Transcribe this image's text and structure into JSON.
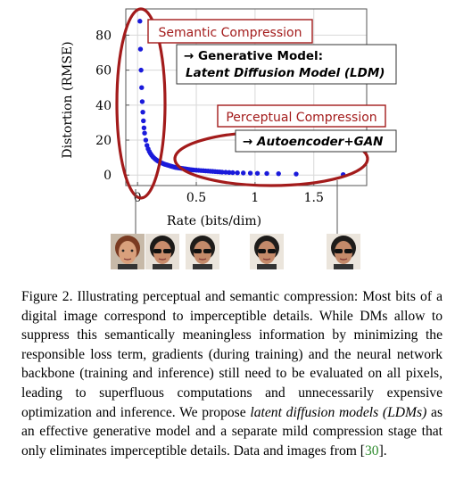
{
  "chart_data": {
    "type": "scatter",
    "title": "",
    "xlabel": "Rate (bits/dim)",
    "ylabel": "Distortion (RMSE)",
    "xlim": [
      -0.1,
      1.95
    ],
    "ylim": [
      -6,
      95
    ],
    "x_ticks": [
      0,
      0.5,
      1,
      1.5
    ],
    "x_tick_labels": [
      "0",
      "0.5",
      "1",
      "1.5"
    ],
    "y_ticks": [
      0,
      20,
      40,
      60,
      80
    ],
    "y_tick_labels": [
      "0",
      "20",
      "40",
      "60",
      "80"
    ],
    "grid": true,
    "color": "#1a1adb",
    "x": [
      0.02,
      0.025,
      0.03,
      0.035,
      0.04,
      0.045,
      0.05,
      0.055,
      0.06,
      0.07,
      0.08,
      0.09,
      0.1,
      0.11,
      0.12,
      0.13,
      0.14,
      0.15,
      0.16,
      0.17,
      0.18,
      0.19,
      0.2,
      0.21,
      0.22,
      0.23,
      0.24,
      0.25,
      0.26,
      0.27,
      0.28,
      0.29,
      0.3,
      0.31,
      0.32,
      0.33,
      0.34,
      0.35,
      0.36,
      0.37,
      0.38,
      0.39,
      0.4,
      0.41,
      0.42,
      0.43,
      0.44,
      0.45,
      0.46,
      0.47,
      0.48,
      0.5,
      0.52,
      0.54,
      0.56,
      0.58,
      0.6,
      0.62,
      0.64,
      0.66,
      0.68,
      0.7,
      0.72,
      0.75,
      0.78,
      0.81,
      0.85,
      0.9,
      0.96,
      1.02,
      1.1,
      1.2,
      1.35,
      1.75
    ],
    "y": [
      88,
      72,
      60,
      50,
      42,
      36,
      31,
      27,
      24,
      20,
      17,
      15,
      13.5,
      12.3,
      11.3,
      10.5,
      9.8,
      9.2,
      8.7,
      8.2,
      7.8,
      7.4,
      7.1,
      6.8,
      6.5,
      6.2,
      6.0,
      5.8,
      5.6,
      5.4,
      5.2,
      5.0,
      4.8,
      4.6,
      4.4,
      4.3,
      4.2,
      4.1,
      4.0,
      3.9,
      3.8,
      3.7,
      3.6,
      3.5,
      3.4,
      3.3,
      3.2,
      3.1,
      3.0,
      2.95,
      2.9,
      2.8,
      2.7,
      2.6,
      2.5,
      2.4,
      2.3,
      2.2,
      2.1,
      2.0,
      1.9,
      1.8,
      1.7,
      1.6,
      1.5,
      1.4,
      1.3,
      1.2,
      1.1,
      1.0,
      0.9,
      0.8,
      0.6,
      0.3
    ],
    "annotations": {
      "semantic_title": "Semantic Compression",
      "semantic_line1": "→ Generative Model:",
      "semantic_line2": "Latent Diffusion Model (LDM)",
      "perceptual_title": "Perceptual Compression",
      "perceptual_line1": "→ Autoencoder+GAN"
    }
  },
  "colors": {
    "annotation_red": "#a31b1b",
    "dots": "#1a1adb",
    "ellipse": "#a31b1b"
  },
  "caption": {
    "part1": "Figure 2. Illustrating perceptual and semantic compression: Most bits of a digital image correspond to imperceptible details. While DMs allow to suppress this semantically meaningless information by minimizing the responsible loss term, gradients (during training) and the neural network backbone (training and inference) still need to be evaluated on all pixels, leading to superfluous computations and unnecessarily expensive optimization and inference. We propose ",
    "emph": "latent diffusion models (LDMs)",
    "part2": " as an effective generative model and a separate mild compression stage that only eliminates imperceptible details. Data and images from [",
    "cite": "30",
    "part3": "]."
  },
  "faces": [
    {
      "name": "face-woman",
      "skin": "#d9a07c",
      "hair": "#7a3b22",
      "bg": "#c7b9a8",
      "glasses": false
    },
    {
      "name": "face-man-1",
      "skin": "#c98c6c",
      "hair": "#1c1a18",
      "bg": "#e6dfd6",
      "glasses": true
    },
    {
      "name": "face-man-2",
      "skin": "#c48a6a",
      "hair": "#1e1c1a",
      "bg": "#ebe5dc",
      "glasses": true
    },
    {
      "name": "face-man-3",
      "skin": "#c48a6a",
      "hair": "#1e1c1a",
      "bg": "#ebe5dc",
      "glasses": true
    },
    {
      "name": "face-man-4",
      "skin": "#c48a6a",
      "hair": "#1e1c1a",
      "bg": "#ebe5dc",
      "glasses": true
    }
  ]
}
